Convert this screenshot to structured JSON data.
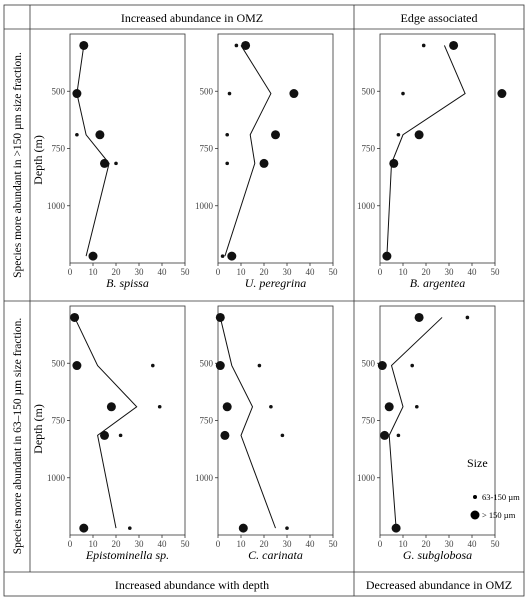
{
  "figure": {
    "column_headers": [
      "Increased abundance in OMZ",
      "Edge associated"
    ],
    "column_footers": [
      "Increased abundance with depth",
      "Decreased abundance in OMZ"
    ],
    "row_labels": [
      "Species more abundant in >150 µm size fraction.",
      "Species more abundant in 63–150 µm size fraction."
    ],
    "ylabel": "Depth (m)",
    "legend": {
      "title": "Size",
      "items": [
        {
          "label": "63-150 µm",
          "marker": "small"
        },
        {
          "label": "> 150 µm",
          "marker": "large"
        }
      ]
    }
  },
  "chart_data": [
    {
      "type": "scatter",
      "title": "B. spissa",
      "ylabel": "Depth (m)",
      "xlim": [
        0,
        50
      ],
      "ylim": [
        1250,
        250
      ],
      "x_ticks": [
        0,
        10,
        20,
        30,
        40,
        50
      ],
      "y_ticks": [
        500,
        750,
        1000
      ],
      "series": [
        {
          "name": "> 150 µm",
          "x": [
            6,
            3,
            13,
            15,
            10
          ],
          "y": [
            300,
            510,
            690,
            815,
            1220
          ]
        },
        {
          "name": "63-150 µm",
          "x": [
            3,
            20,
            9
          ],
          "y": [
            690,
            815,
            1220
          ]
        }
      ],
      "line": {
        "x": [
          6,
          3,
          7,
          17,
          7
        ],
        "y": [
          300,
          510,
          690,
          815,
          1220
        ]
      }
    },
    {
      "type": "scatter",
      "title": "U. peregrina",
      "xlim": [
        0,
        50
      ],
      "ylim": [
        1250,
        250
      ],
      "x_ticks": [
        0,
        10,
        20,
        30,
        40,
        50
      ],
      "y_ticks": [
        500,
        750,
        1000
      ],
      "series": [
        {
          "name": "> 150 µm",
          "x": [
            12,
            33,
            25,
            20,
            6
          ],
          "y": [
            300,
            510,
            690,
            815,
            1220
          ]
        },
        {
          "name": "63-150 µm",
          "x": [
            8,
            5,
            4,
            4,
            2
          ],
          "y": [
            300,
            510,
            690,
            815,
            1220
          ]
        }
      ],
      "line": {
        "x": [
          10,
          23,
          14,
          16,
          3
        ],
        "y": [
          300,
          510,
          690,
          815,
          1220
        ]
      }
    },
    {
      "type": "scatter",
      "title": "B. argentea",
      "xlim": [
        0,
        50
      ],
      "ylim": [
        1250,
        250
      ],
      "x_ticks": [
        0,
        10,
        20,
        30,
        40,
        50
      ],
      "y_ticks": [
        500,
        750,
        1000
      ],
      "series": [
        {
          "name": "> 150 µm",
          "x": [
            32,
            53,
            17,
            6,
            3
          ],
          "y": [
            300,
            510,
            690,
            815,
            1220
          ]
        },
        {
          "name": "63-150 µm",
          "x": [
            19,
            10,
            8,
            5,
            2
          ],
          "y": [
            300,
            510,
            690,
            815,
            1220
          ]
        }
      ],
      "line": {
        "x": [
          28,
          37,
          10,
          5,
          3
        ],
        "y": [
          300,
          510,
          690,
          815,
          1220
        ]
      }
    },
    {
      "type": "scatter",
      "title": "Epistominella sp.",
      "xlim": [
        0,
        50
      ],
      "ylim": [
        1250,
        250
      ],
      "x_ticks": [
        0,
        10,
        20,
        30,
        40,
        50
      ],
      "y_ticks": [
        500,
        750,
        1000
      ],
      "series": [
        {
          "name": "> 150 µm",
          "x": [
            2,
            3,
            18,
            15,
            6
          ],
          "y": [
            300,
            510,
            690,
            815,
            1220
          ]
        },
        {
          "name": "63-150 µm",
          "x": [
            3,
            36,
            39,
            22,
            26
          ],
          "y": [
            300,
            510,
            690,
            815,
            1220
          ]
        }
      ],
      "line": {
        "x": [
          2,
          12,
          29,
          12,
          20
        ],
        "y": [
          300,
          510,
          690,
          815,
          1220
        ]
      }
    },
    {
      "type": "scatter",
      "title": "C. carinata",
      "xlim": [
        0,
        50
      ],
      "ylim": [
        1250,
        250
      ],
      "x_ticks": [
        0,
        10,
        20,
        30,
        40,
        50
      ],
      "y_ticks": [
        500,
        750,
        1000
      ],
      "series": [
        {
          "name": "> 150 µm",
          "x": [
            1,
            1,
            4,
            3,
            11
          ],
          "y": [
            300,
            510,
            690,
            815,
            1220
          ]
        },
        {
          "name": "63-150 µm",
          "x": [
            1,
            18,
            23,
            28,
            30
          ],
          "y": [
            300,
            510,
            690,
            815,
            1220
          ]
        }
      ],
      "line": {
        "x": [
          1,
          6,
          15,
          10,
          25
        ],
        "y": [
          300,
          510,
          690,
          815,
          1220
        ]
      }
    },
    {
      "type": "scatter",
      "title": "G. subglobosa",
      "xlim": [
        0,
        50
      ],
      "ylim": [
        1250,
        250
      ],
      "x_ticks": [
        0,
        10,
        20,
        30,
        40,
        50
      ],
      "y_ticks": [
        500,
        750,
        1000
      ],
      "series": [
        {
          "name": "> 150 µm",
          "x": [
            17,
            1,
            4,
            2,
            7
          ],
          "y": [
            300,
            510,
            690,
            815,
            1220
          ]
        },
        {
          "name": "63-150 µm",
          "x": [
            38,
            14,
            16,
            8,
            7
          ],
          "y": [
            300,
            510,
            690,
            815,
            1220
          ]
        }
      ],
      "line": {
        "x": [
          27,
          5,
          10,
          4,
          7
        ],
        "y": [
          300,
          510,
          690,
          815,
          1220
        ]
      }
    }
  ]
}
